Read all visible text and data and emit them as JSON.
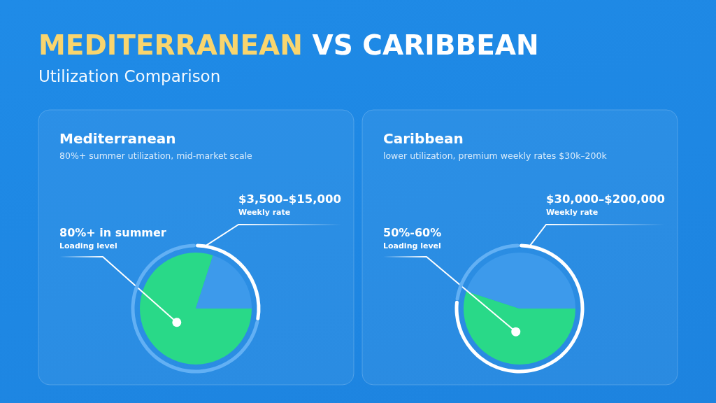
{
  "chart_data": [
    {
      "type": "other",
      "title": "MEDITERRANEAN VS CARIBBEAN",
      "subtitle": "Utilization Comparison"
    },
    {
      "type": "pie",
      "title": "Mediterranean",
      "subtitle": "80%+ summer utilization, mid-market scale",
      "categories": [
        null,
        null
      ],
      "series": [
        {
          "name": "Loading level",
          "values": [
            80,
            20
          ],
          "colors": [
            "#29d988",
            "#3d9aeb"
          ]
        }
      ],
      "annotations": [
        "80%+ in summer"
      ]
    },
    {
      "type": "donut",
      "categories": [
        null,
        null
      ],
      "series": [
        {
          "name": "Weekly rate",
          "values": [
            28,
            72
          ],
          "colors": [
            "#ffffff",
            "#62b0f4"
          ]
        }
      ],
      "annotations": [
        "$3,500–$15,000"
      ]
    },
    {
      "type": "pie",
      "title": "Caribbean",
      "subtitle": "lower utilization, premium weekly rates $30k–200k",
      "categories": [
        null,
        null
      ],
      "series": [
        {
          "name": "Loading level",
          "values": [
            55,
            45
          ],
          "colors": [
            "#29d988",
            "#3d9aeb"
          ]
        }
      ],
      "annotations": [
        "50%-60%"
      ]
    },
    {
      "type": "donut",
      "categories": [
        null,
        null
      ],
      "series": [
        {
          "name": "Weekly rate",
          "values": [
            77,
            23
          ],
          "colors": [
            "#ffffff",
            "#62b0f4"
          ]
        }
      ],
      "annotations": [
        "$30,000–$200,000"
      ]
    }
  ]
}
